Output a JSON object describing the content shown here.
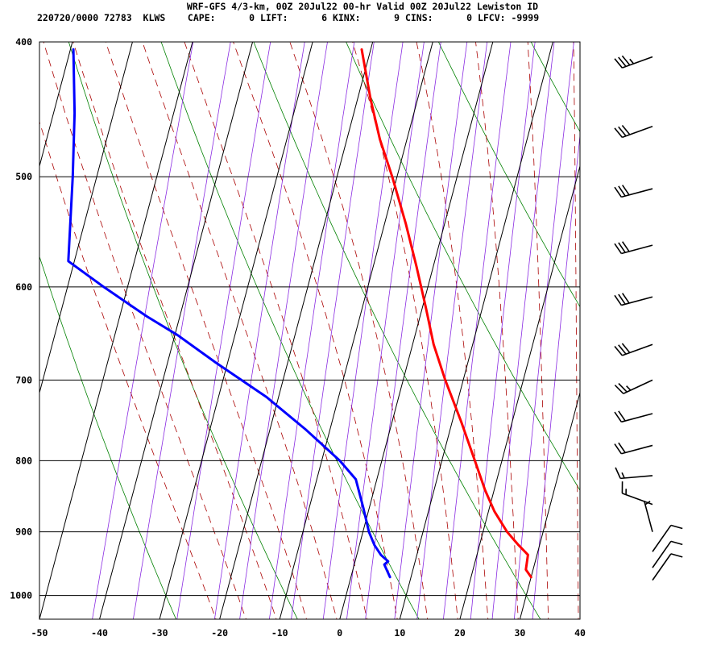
{
  "header": {
    "title": "WRF-GFS 4/3-km, 00Z 20Jul22 00-hr Valid 00Z 20Jul22 Lewiston ID",
    "indices_line": "220720/0000 72783  KLWS    CAPE:      0 LIFT:      6 KINX:      9 CINS:      0 LFCV: -9999"
  },
  "chart_data": {
    "type": "skew-t",
    "title": "WRF-GFS 4/3-km, 00Z 20Jul22 00-hr Valid 00Z 20Jul22 Lewiston ID",
    "station": "KLWS",
    "xlim": [
      -50,
      40
    ],
    "ylim_pressure": [
      1040,
      400
    ],
    "x_ticks": [
      "-50",
      "-40",
      "-30",
      "-20",
      "-10",
      "0",
      "10",
      "20",
      "30",
      "40"
    ],
    "y_ticks": [
      "400",
      "500",
      "600",
      "700",
      "800",
      "900",
      "1000"
    ],
    "skew_description": "isotherms tilted to the right with height",
    "temperature": {
      "color": "#ff0000",
      "points": [
        {
          "p": 970,
          "t": 30.0
        },
        {
          "p": 958,
          "t": 28.8
        },
        {
          "p": 935,
          "t": 28.5
        },
        {
          "p": 920,
          "t": 26.5
        },
        {
          "p": 900,
          "t": 24.0
        },
        {
          "p": 870,
          "t": 21.0
        },
        {
          "p": 840,
          "t": 18.5
        },
        {
          "p": 800,
          "t": 15.5
        },
        {
          "p": 750,
          "t": 11.5
        },
        {
          "p": 700,
          "t": 7.0
        },
        {
          "p": 660,
          "t": 3.5
        },
        {
          "p": 620,
          "t": 0.5
        },
        {
          "p": 580,
          "t": -2.8
        },
        {
          "p": 540,
          "t": -6.5
        },
        {
          "p": 500,
          "t": -10.8
        },
        {
          "p": 470,
          "t": -14.5
        },
        {
          "p": 440,
          "t": -17.8
        },
        {
          "p": 405,
          "t": -21.5
        }
      ]
    },
    "dewpoint": {
      "color": "#0000ff",
      "points": [
        {
          "p": 970,
          "t": 6.5
        },
        {
          "p": 950,
          "t": 5.0
        },
        {
          "p": 945,
          "t": 5.5
        },
        {
          "p": 935,
          "t": 4.0
        },
        {
          "p": 920,
          "t": 2.5
        },
        {
          "p": 900,
          "t": 1.0
        },
        {
          "p": 865,
          "t": -1.0
        },
        {
          "p": 825,
          "t": -3.5
        },
        {
          "p": 800,
          "t": -7.0
        },
        {
          "p": 760,
          "t": -14.0
        },
        {
          "p": 720,
          "t": -22.0
        },
        {
          "p": 680,
          "t": -32.0
        },
        {
          "p": 650,
          "t": -39.5
        },
        {
          "p": 630,
          "t": -45.5
        },
        {
          "p": 600,
          "t": -54.0
        },
        {
          "p": 575,
          "t": -61.0
        },
        {
          "p": 500,
          "t": -64.0
        },
        {
          "p": 450,
          "t": -66.5
        },
        {
          "p": 405,
          "t": -69.5
        }
      ]
    },
    "wind_barbs": [
      {
        "p": 410,
        "dir": 250,
        "kt": 35
      },
      {
        "p": 460,
        "dir": 250,
        "kt": 30
      },
      {
        "p": 510,
        "dir": 255,
        "kt": 30
      },
      {
        "p": 560,
        "dir": 255,
        "kt": 30
      },
      {
        "p": 610,
        "dir": 255,
        "kt": 30
      },
      {
        "p": 660,
        "dir": 250,
        "kt": 30
      },
      {
        "p": 700,
        "dir": 245,
        "kt": 25
      },
      {
        "p": 740,
        "dir": 255,
        "kt": 20
      },
      {
        "p": 780,
        "dir": 255,
        "kt": 20
      },
      {
        "p": 820,
        "dir": 265,
        "kt": 15
      },
      {
        "p": 860,
        "dir": 290,
        "kt": 15
      },
      {
        "p": 900,
        "dir": 345,
        "kt": 5
      },
      {
        "p": 930,
        "dir": 35,
        "kt": 10
      },
      {
        "p": 955,
        "dir": 35,
        "kt": 10
      },
      {
        "p": 975,
        "dir": 35,
        "kt": 10
      }
    ],
    "colors": {
      "isotherm": "#000000",
      "dry_adiabat": "#008000",
      "moist_adiabat": "#aa0000",
      "mixing_ratio": "#8a2be2",
      "temperature": "#ff0000",
      "dewpoint": "#0000ff",
      "wind_barb": "#000000"
    }
  }
}
